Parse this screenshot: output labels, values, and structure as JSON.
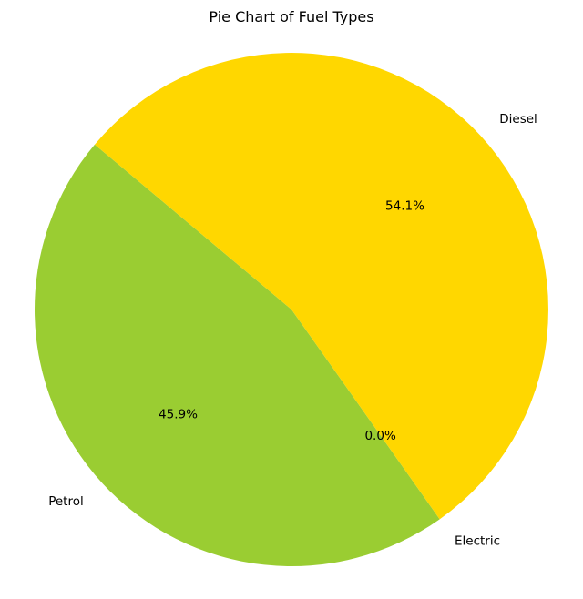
{
  "chart_data": {
    "type": "pie",
    "title": "Pie Chart of Fuel Types",
    "categories": [
      "Petrol",
      "Electric",
      "Diesel"
    ],
    "percentages": [
      "45.9%",
      "0.0%",
      "54.1%"
    ],
    "values": [
      45.9,
      0.0,
      54.1
    ],
    "colors": [
      "#9acd32",
      "#1f77b4",
      "#ffd700"
    ],
    "start_angle_deg": 140,
    "direction": "counterclockwise",
    "legend": "none"
  }
}
